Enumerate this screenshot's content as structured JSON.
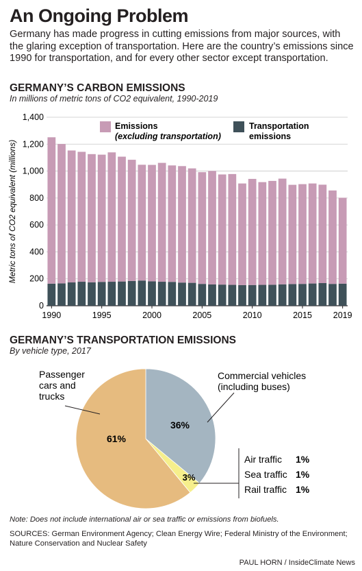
{
  "header": {
    "title": "An Ongoing Problem",
    "intro": "Germany has made progress in cutting emissions from major sources, with the glaring exception of transportation. Here are the country’s emissions since 1990 for transportation, and for every other sector except transportation."
  },
  "bar_section": {
    "title": "GERMANY’S CARBON EMISSIONS",
    "subtitle": "In millions of metric tons of CO2 equivalent, 1990-2019"
  },
  "pie_section": {
    "title": "GERMANY’S TRANSPORTATION EMISSIONS",
    "subtitle": "By vehicle type, 2017"
  },
  "footer": {
    "note": "Note: Does not include international air or sea traffic or emissions from biofuels.",
    "sources": "SOURCES: German Environment Agency; Clean Energy Wire; Federal Ministry of the Environment; Nature Conservation and Nuclear Safety",
    "credit": "PAUL HORN / InsideClimate News"
  },
  "colors": {
    "emissions": "#c79bb5",
    "transportation": "#3f5159",
    "commercial": "#a4b5c1",
    "passenger": "#e6bb7f",
    "small": "#f6ef8c"
  },
  "chart_data": [
    {
      "type": "bar",
      "stacked": true,
      "title": "GERMANY’S CARBON EMISSIONS",
      "subtitle": "In millions of metric tons of CO2 equivalent, 1990-2019",
      "ylabel": "Metric tons of CO2 equivalent (millions)",
      "ylim": [
        0,
        1400
      ],
      "yticks": [
        "1,400",
        "1,200",
        "1,000",
        "800",
        "600",
        "400",
        "200",
        "0"
      ],
      "ytick_values": [
        1400,
        1200,
        1000,
        800,
        600,
        400,
        200,
        0
      ],
      "xtick_labels": [
        "1990",
        "1995",
        "2000",
        "2005",
        "2010",
        "2015",
        "2019"
      ],
      "grid": true,
      "legend_position": "top",
      "categories": [
        1990,
        1991,
        1992,
        1993,
        1994,
        1995,
        1996,
        1997,
        1998,
        1999,
        2000,
        2001,
        2002,
        2003,
        2004,
        2005,
        2006,
        2007,
        2008,
        2009,
        2010,
        2011,
        2012,
        2013,
        2014,
        2015,
        2016,
        2017,
        2018,
        2019
      ],
      "series": [
        {
          "name": "Transportation emissions",
          "color": "#3f5159",
          "values": [
            164,
            166,
            173,
            178,
            174,
            177,
            178,
            180,
            184,
            187,
            181,
            178,
            177,
            172,
            170,
            162,
            158,
            157,
            155,
            153,
            154,
            155,
            156,
            159,
            161,
            162,
            165,
            168,
            162,
            164
          ]
        },
        {
          "name": "Emissions (excluding transportation)",
          "color": "#c79bb5",
          "values": [
            1087,
            1035,
            980,
            965,
            952,
            945,
            961,
            927,
            900,
            860,
            865,
            883,
            865,
            865,
            850,
            830,
            843,
            818,
            823,
            755,
            788,
            763,
            771,
            785,
            737,
            741,
            743,
            731,
            694,
            638
          ]
        }
      ],
      "totals": [
        1251,
        1201,
        1153,
        1143,
        1126,
        1122,
        1139,
        1107,
        1084,
        1047,
        1046,
        1061,
        1042,
        1037,
        1020,
        992,
        1001,
        975,
        978,
        908,
        942,
        918,
        927,
        944,
        898,
        903,
        908,
        899,
        856,
        802
      ]
    },
    {
      "type": "pie",
      "title": "GERMANY’S TRANSPORTATION EMISSIONS",
      "subtitle": "By vehicle type, 2017",
      "slices": [
        {
          "label": "Commercial vehicles (including buses)",
          "value": 36,
          "display": "36%",
          "color": "#a4b5c1"
        },
        {
          "label": "Air traffic, Sea traffic, Rail traffic",
          "value": 3,
          "display": "3%",
          "color": "#f6ef8c"
        },
        {
          "label": "Passenger cars and trucks",
          "value": 61,
          "display": "61%",
          "color": "#e6bb7f"
        }
      ],
      "callout_lines": {
        "commercial": [
          "Commercial vehicles",
          "(including buses)"
        ],
        "passenger": [
          "Passenger",
          "cars and",
          "trucks"
        ]
      },
      "small_breakdown": [
        {
          "label": "Air traffic",
          "value": "1%"
        },
        {
          "label": "Sea traffic",
          "value": "1%"
        },
        {
          "label": "Rail traffic",
          "value": "1%"
        }
      ]
    }
  ]
}
